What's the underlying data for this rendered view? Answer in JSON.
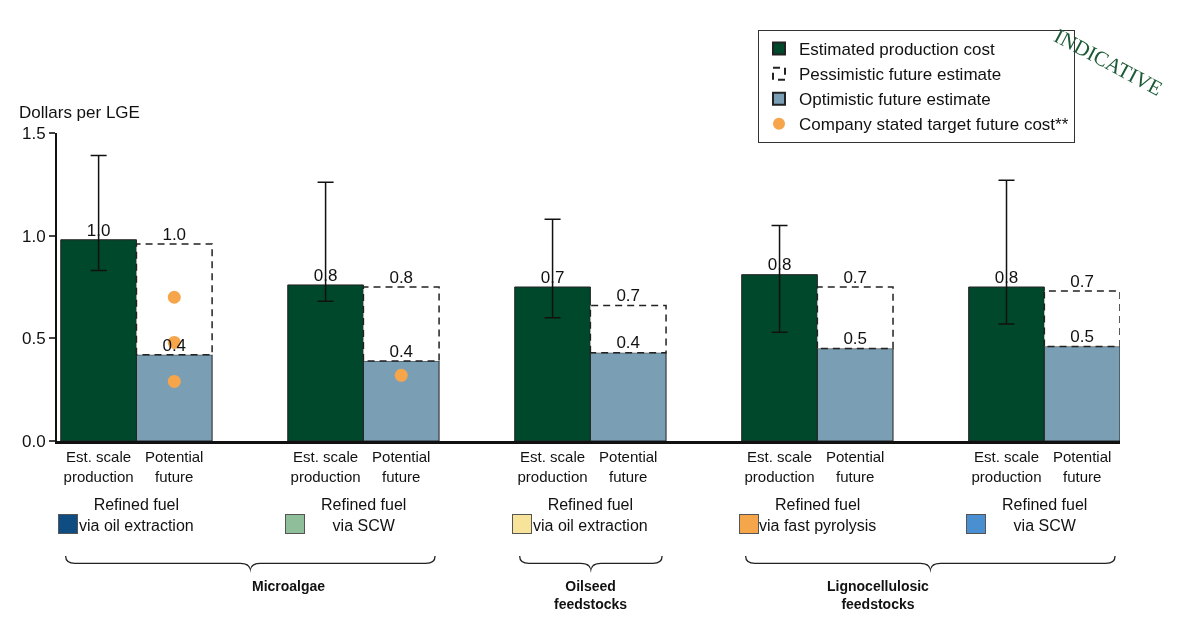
{
  "chart_data": {
    "type": "bar",
    "stacked": true,
    "totals": [
      null,
      "1.0",
      null,
      "0.8",
      null,
      "0.7",
      null,
      "0.7",
      null,
      "0.7"
    ],
    "ylabel": "Dollars per LGE",
    "legend": "top right",
    "categories": [
      "Est. scale\nproduction",
      "Potential\nfuture",
      "Est. scale\nproduction",
      "Potential\nfuture",
      "Est. scale\nproduction",
      "Potential\nfuture",
      "Est. scale\nproduction",
      "Potential\nfuture",
      "Est. scale\nproduction",
      "Potential\nfuture"
    ],
    "ylim": [
      0,
      1.5
    ],
    "yticks": [
      {
        "value": 0,
        "label": "0.0"
      },
      {
        "value": 0.5,
        "label": "0.5"
      },
      {
        "value": 1,
        "label": "1.0"
      },
      {
        "value": 1.5,
        "label": "1.5"
      }
    ],
    "series": [
      {
        "name": "Estimated production cost",
        "color": "#00482b",
        "values": [
          0.98,
          null,
          0.76,
          null,
          0.75,
          null,
          0.81,
          null,
          0.75,
          null
        ],
        "value_labels": [
          "1.0",
          null,
          "0.8",
          null,
          "0.7",
          null,
          "0.8",
          null,
          "0.8",
          null
        ],
        "errors": [
          [
            0.83,
            1.39
          ],
          null,
          [
            0.68,
            1.26
          ],
          null,
          [
            0.6,
            1.08
          ],
          null,
          [
            0.53,
            1.05
          ],
          null,
          [
            0.57,
            1.27
          ],
          null
        ]
      },
      {
        "name": "Optimistic future estimate",
        "type": "bar",
        "color": "#7a9fb5",
        "values": [
          null,
          0.42,
          null,
          0.39,
          null,
          0.43,
          null,
          0.45,
          null,
          0.46
        ],
        "value_labels": [
          null,
          "0.4",
          null,
          "0.4",
          null,
          "0.4",
          null,
          "0.5",
          null,
          "0.5"
        ]
      },
      {
        "name": "Pessimistic future estimate",
        "type": "bar",
        "color": "#ffffff",
        "line_style": "dashed",
        "values": [
          null,
          0.54,
          null,
          0.36,
          null,
          0.23,
          null,
          0.3,
          null,
          0.27
        ]
      },
      {
        "name": "Company stated target future cost**",
        "type": "scatter",
        "marker": "circle",
        "color": "#f7a54a",
        "values": [
          null,
          0.7,
          null,
          0.32,
          null,
          null,
          null,
          null,
          null,
          null
        ]
      },
      {
        "type": "scatter",
        "marker": "circle",
        "color": "#f7a54a",
        "values": [
          null,
          0.48,
          null,
          null,
          null,
          null,
          null,
          null,
          null,
          null
        ]
      },
      {
        "type": "scatter",
        "marker": "circle",
        "color": "#f7a54a",
        "values": [
          null,
          0.29,
          null,
          null,
          null,
          null,
          null,
          null,
          null,
          null
        ]
      }
    ],
    "annotations": [
      "INDICATIVE",
      "Refined fuel\nvia oil extraction",
      "Refined fuel\nvia SCW",
      "Refined fuel\nvia oil extraction",
      "Refined fuel\nvia fast pyrolysis",
      "Refined fuel\nvia SCW",
      "Microalgae",
      "Oilseed\nfeedstocks",
      "Lignocellulosic\nfeedstocks"
    ]
  }
}
